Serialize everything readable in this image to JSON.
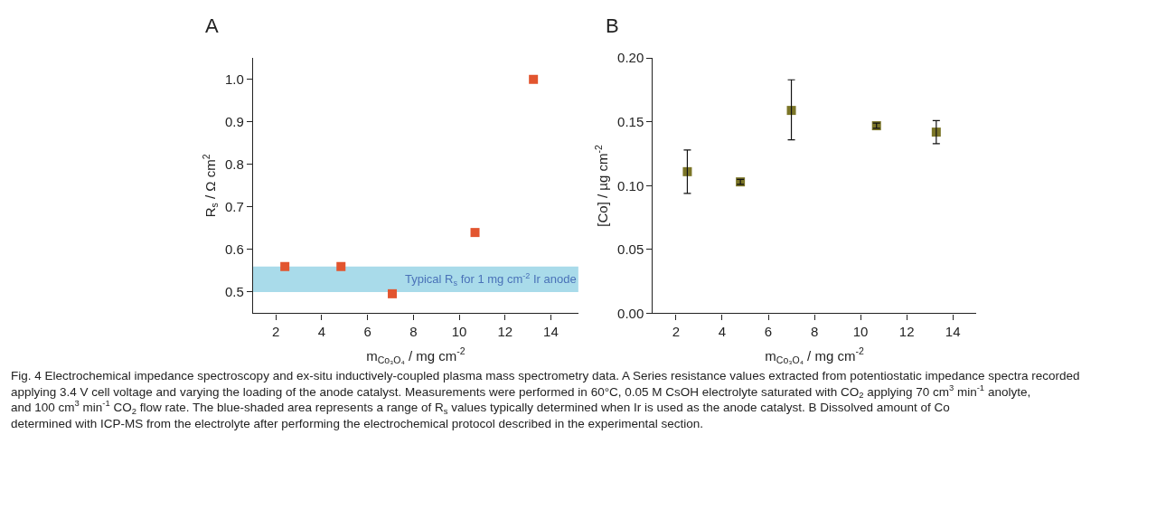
{
  "chart_data": [
    {
      "type": "scatter",
      "title": "A",
      "xlabel": "m$_{Co₃O₄}$ / mg cm$^{-2}$",
      "ylabel": "R$_{s}$ / Ω cm$^{2}$",
      "x": [
        2.39,
        4.84,
        7.08,
        10.69,
        13.24
      ],
      "series": [
        {
          "color": "#e2552f",
          "values": [
            0.56,
            0.56,
            0.496,
            0.64,
            1.0
          ]
        }
      ],
      "xlim": [
        1,
        15.2
      ],
      "xticks": [
        2,
        4,
        6,
        8,
        10,
        12,
        14
      ],
      "ylim": [
        0.45,
        1.05
      ],
      "yticks": [
        0.5,
        0.6,
        0.7,
        0.8,
        0.9,
        {
          "value": 1,
          "label": "1.0"
        }
      ],
      "marker": "square",
      "bands": [
        {
          "axis": "y",
          "from": 0.5,
          "to": 0.56,
          "label": "Typical R$_{s}$ for 1 mg cm$^{-2}$ Ir anode",
          "color": "#a9dbea"
        }
      ],
      "annotations": [
        "Fig. 4 Electrochemical impedance spectroscopy and ex-situ inductively-coupled plasma mass spectrometry data. A Series resistance values extracted from potentiostatic impedance spectra recorded applying 3.4 V cell voltage and varying the loading of the anode catalyst. Measurements were performed in 60°C, 0.05 M CsOH electrolyte saturated with CO$_{2}$ applying 70 cm$^{3}$ min$^{-1}$ anolyte, and 100 cm$^{3}$ min$^{-1}$ CO$_{2}$ flow rate. The blue-shaded area represents a range of R$_{s}$ values typically determined when Ir is used as the anode catalyst. B Dissolved amount of Co determined with ICP-MS from the electrolyte after performing the electrochemical protocol described in the experimental section."
      ]
    },
    {
      "type": "scatter",
      "title": "B",
      "xlabel": "m$_{Co₃O₄}$ / mg cm$^{-2}$",
      "ylabel": "[Co] / µg cm$^{-2}$",
      "x": [
        2.49,
        4.79,
        7.0,
        10.69,
        13.28
      ],
      "series": [
        {
          "color": "#7b7527",
          "values": [
            0.111,
            0.103,
            0.159,
            0.147,
            0.142
          ],
          "errors": [
            [
              0.094,
              0.128
            ],
            0.002,
            [
              0.136,
              0.183
            ],
            0.002,
            [
              0.133,
              0.151
            ]
          ]
        }
      ],
      "xlim": [
        1,
        15
      ],
      "xticks": [
        2,
        4,
        6,
        8,
        10,
        12,
        14
      ],
      "ylim": [
        0,
        0.2
      ],
      "yticks": [
        {
          "value": 0,
          "label": "0.00"
        },
        {
          "value": 0.05,
          "label": "0.05"
        },
        {
          "value": 0.1,
          "label": "0.10"
        },
        {
          "value": 0.15,
          "label": "0.15"
        },
        {
          "value": 0.2,
          "label": "0.20"
        }
      ],
      "marker": "square"
    }
  ]
}
